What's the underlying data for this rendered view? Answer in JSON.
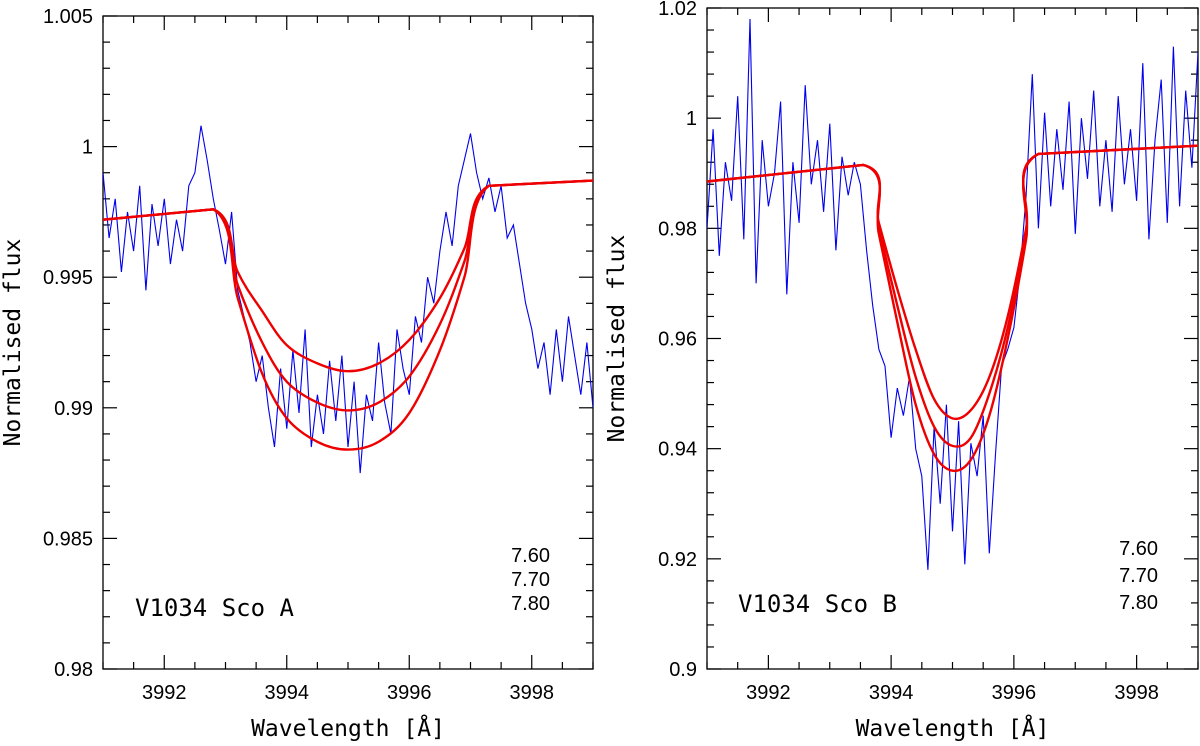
{
  "chart_data": [
    {
      "type": "line",
      "xlabel": "Wavelength [Å]",
      "ylabel": "Normalised flux",
      "xlim": [
        3991,
        3999
      ],
      "ylim": [
        0.98,
        1.005
      ],
      "x_ticks": [
        3992,
        3994,
        3996,
        3998
      ],
      "x_tick_labels": [
        "3992",
        "3994",
        "3996",
        "3998"
      ],
      "y_ticks": [
        0.98,
        0.985,
        0.99,
        0.995,
        1.0,
        1.005
      ],
      "y_tick_labels": [
        "0.98",
        "0.985",
        "0.99",
        "0.995",
        "1",
        "1.005"
      ],
      "annotation": "V1034 Sco A",
      "abundance_labels": [
        "7.60",
        "7.70",
        "7.80"
      ],
      "observed_color": "#0000ee",
      "model_color": "#ee0000",
      "observed": {
        "x": [
          3991.0,
          3991.1,
          3991.2,
          3991.3,
          3991.4,
          3991.5,
          3991.6,
          3991.7,
          3991.8,
          3991.9,
          3992.0,
          3992.1,
          3992.2,
          3992.3,
          3992.4,
          3992.5,
          3992.6,
          3992.7,
          3992.8,
          3992.9,
          3993.0,
          3993.1,
          3993.2,
          3993.3,
          3993.4,
          3993.5,
          3993.6,
          3993.7,
          3993.8,
          3993.9,
          3994.0,
          3994.1,
          3994.2,
          3994.3,
          3994.4,
          3994.5,
          3994.6,
          3994.7,
          3994.8,
          3994.9,
          3995.0,
          3995.1,
          3995.2,
          3995.3,
          3995.4,
          3995.5,
          3995.6,
          3995.7,
          3995.8,
          3995.9,
          3996.0,
          3996.1,
          3996.2,
          3996.3,
          3996.4,
          3996.5,
          3996.6,
          3996.7,
          3996.8,
          3996.9,
          3997.0,
          3997.1,
          3997.2,
          3997.3,
          3997.4,
          3997.5,
          3997.6,
          3997.7,
          3997.8,
          3997.9,
          3998.0,
          3998.1,
          3998.2,
          3998.3,
          3998.4,
          3998.5,
          3998.6,
          3998.7,
          3998.8,
          3998.9,
          3999.0
        ],
        "y": [
          0.999,
          0.9965,
          0.998,
          0.9952,
          0.9975,
          0.996,
          0.9985,
          0.9945,
          0.9978,
          0.9962,
          0.998,
          0.9955,
          0.9972,
          0.996,
          0.9985,
          0.999,
          1.0008,
          0.9995,
          0.998,
          0.9968,
          0.9955,
          0.9975,
          0.9945,
          0.9935,
          0.9925,
          0.991,
          0.992,
          0.99,
          0.9885,
          0.9915,
          0.9892,
          0.9922,
          0.9898,
          0.993,
          0.9885,
          0.9905,
          0.989,
          0.9918,
          0.9895,
          0.992,
          0.9885,
          0.991,
          0.9875,
          0.9905,
          0.9895,
          0.9925,
          0.9902,
          0.989,
          0.993,
          0.9915,
          0.9905,
          0.9935,
          0.9925,
          0.995,
          0.994,
          0.996,
          0.9975,
          0.9962,
          0.9985,
          0.9995,
          1.0005,
          0.999,
          0.998,
          0.9988,
          0.9975,
          0.9985,
          0.9965,
          0.997,
          0.9955,
          0.994,
          0.993,
          0.9915,
          0.9925,
          0.9905,
          0.993,
          0.991,
          0.9935,
          0.992,
          0.9905,
          0.9925,
          0.99
        ]
      },
      "series": [
        {
          "name": "7.60",
          "x": [
            3991.0,
            3992.8,
            3993.2,
            3993.6,
            3994.0,
            3994.5,
            3995.0,
            3995.5,
            3996.0,
            3996.5,
            3996.9,
            3997.3,
            3999.0
          ],
          "y": [
            0.9972,
            0.9976,
            0.9952,
            0.9937,
            0.9924,
            0.9917,
            0.9914,
            0.9917,
            0.9926,
            0.9942,
            0.9961,
            0.9985,
            0.9987
          ]
        },
        {
          "name": "7.70",
          "x": [
            3991.0,
            3992.8,
            3993.2,
            3993.6,
            3994.0,
            3994.5,
            3995.0,
            3995.5,
            3996.0,
            3996.5,
            3996.9,
            3997.3,
            3999.0
          ],
          "y": [
            0.9972,
            0.9976,
            0.9947,
            0.9925,
            0.991,
            0.9902,
            0.9899,
            0.9902,
            0.9912,
            0.9932,
            0.9956,
            0.9985,
            0.9987
          ]
        },
        {
          "name": "7.80",
          "x": [
            3991.0,
            3992.8,
            3993.2,
            3993.6,
            3994.0,
            3994.5,
            3995.0,
            3995.5,
            3996.0,
            3996.5,
            3996.9,
            3997.3,
            3999.0
          ],
          "y": [
            0.9972,
            0.9976,
            0.9942,
            0.9913,
            0.9896,
            0.9887,
            0.9884,
            0.9887,
            0.9898,
            0.9922,
            0.995,
            0.9985,
            0.9987
          ]
        }
      ]
    },
    {
      "type": "line",
      "xlabel": "Wavelength [Å]",
      "ylabel": "Normalised flux",
      "xlim": [
        3991,
        3999
      ],
      "ylim": [
        0.9,
        1.02
      ],
      "x_ticks": [
        3992,
        3994,
        3996,
        3998
      ],
      "x_tick_labels": [
        "3992",
        "3994",
        "3996",
        "3998"
      ],
      "y_ticks": [
        0.9,
        0.92,
        0.94,
        0.96,
        0.98,
        1.0,
        1.02
      ],
      "y_tick_labels": [
        "0.9",
        "0.92",
        "0.94",
        "0.96",
        "0.98",
        "1",
        "1.02"
      ],
      "annotation": "V1034 Sco B",
      "abundance_labels": [
        "7.60",
        "7.70",
        "7.80"
      ],
      "observed_color": "#0000ee",
      "model_color": "#ee0000",
      "observed": {
        "x": [
          3991.0,
          3991.1,
          3991.2,
          3991.3,
          3991.4,
          3991.5,
          3991.6,
          3991.7,
          3991.8,
          3991.9,
          3992.0,
          3992.1,
          3992.2,
          3992.3,
          3992.4,
          3992.5,
          3992.6,
          3992.7,
          3992.8,
          3992.9,
          3993.0,
          3993.1,
          3993.2,
          3993.3,
          3993.4,
          3993.5,
          3993.6,
          3993.7,
          3993.8,
          3993.9,
          3994.0,
          3994.1,
          3994.2,
          3994.3,
          3994.4,
          3994.5,
          3994.6,
          3994.7,
          3994.8,
          3994.9,
          3995.0,
          3995.1,
          3995.2,
          3995.3,
          3995.4,
          3995.5,
          3995.6,
          3995.7,
          3995.8,
          3995.9,
          3996.0,
          3996.1,
          3996.2,
          3996.3,
          3996.4,
          3996.5,
          3996.6,
          3996.7,
          3996.8,
          3996.9,
          3997.0,
          3997.1,
          3997.2,
          3997.3,
          3997.4,
          3997.5,
          3997.6,
          3997.7,
          3997.8,
          3997.9,
          3998.0,
          3998.1,
          3998.2,
          3998.3,
          3998.4,
          3998.5,
          3998.6,
          3998.7,
          3998.8,
          3998.9,
          3999.0
        ],
        "y": [
          0.98,
          0.998,
          0.975,
          0.992,
          0.985,
          1.004,
          0.978,
          1.018,
          0.97,
          0.996,
          0.984,
          0.99,
          1.003,
          0.968,
          0.992,
          0.981,
          1.006,
          0.988,
          0.996,
          0.983,
          0.999,
          0.976,
          0.993,
          0.986,
          0.992,
          0.988,
          0.976,
          0.966,
          0.958,
          0.955,
          0.942,
          0.951,
          0.946,
          0.953,
          0.94,
          0.935,
          0.918,
          0.944,
          0.93,
          0.948,
          0.925,
          0.945,
          0.919,
          0.941,
          0.935,
          0.946,
          0.921,
          0.939,
          0.955,
          0.958,
          0.962,
          0.972,
          0.986,
          1.008,
          0.98,
          1.001,
          0.984,
          0.998,
          0.987,
          1.003,
          0.979,
          1.0,
          0.989,
          1.005,
          0.984,
          0.996,
          0.983,
          1.004,
          0.988,
          0.998,
          0.985,
          1.01,
          0.978,
          0.996,
          1.007,
          0.981,
          1.013,
          0.984,
          1.005,
          0.991,
          1.012
        ]
      },
      "series": [
        {
          "name": "7.60",
          "x": [
            3991.0,
            3993.55,
            3993.8,
            3994.1,
            3994.4,
            3994.7,
            3995.0,
            3995.3,
            3995.6,
            3995.9,
            3996.2,
            3996.4,
            3999.0
          ],
          "y": [
            0.9885,
            0.9915,
            0.981,
            0.969,
            0.958,
            0.949,
            0.9455,
            0.947,
            0.953,
            0.964,
            0.98,
            0.9935,
            0.995
          ]
        },
        {
          "name": "7.70",
          "x": [
            3991.0,
            3993.55,
            3993.8,
            3994.1,
            3994.4,
            3994.7,
            3995.0,
            3995.3,
            3995.6,
            3995.9,
            3996.2,
            3996.4,
            3999.0
          ],
          "y": [
            0.9885,
            0.9915,
            0.98,
            0.966,
            0.953,
            0.944,
            0.9405,
            0.942,
            0.95,
            0.962,
            0.979,
            0.9935,
            0.995
          ]
        },
        {
          "name": "7.80",
          "x": [
            3991.0,
            3993.55,
            3993.8,
            3994.1,
            3994.4,
            3994.7,
            3995.0,
            3995.3,
            3995.6,
            3995.9,
            3996.2,
            3996.4,
            3999.0
          ],
          "y": [
            0.9885,
            0.9915,
            0.979,
            0.963,
            0.948,
            0.939,
            0.936,
            0.938,
            0.946,
            0.96,
            0.978,
            0.9935,
            0.995
          ]
        }
      ]
    }
  ]
}
